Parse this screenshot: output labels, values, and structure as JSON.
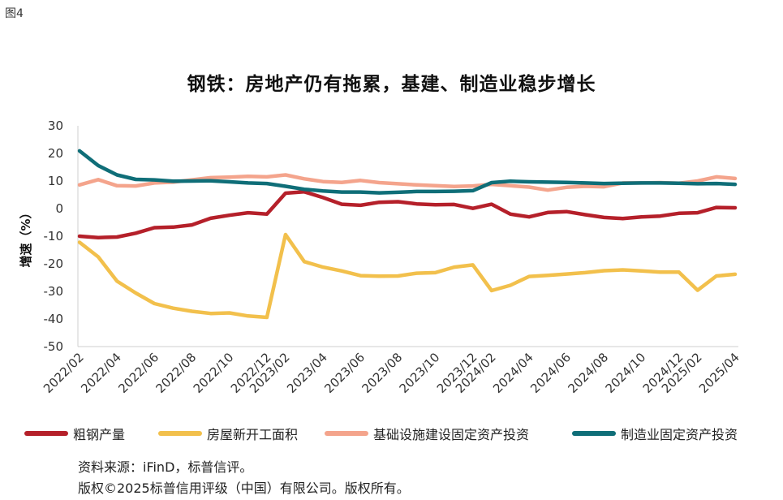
{
  "figure_label": "图4",
  "notes": {
    "source": "资料来源：iFinD，标普信评。",
    "copyright": "版权©2025标普信用评级（中国）有限公司。版权所有。"
  },
  "chart_data": {
    "type": "line",
    "title": "钢铁：房地产仍有拖累，基建、制造业稳步增长",
    "xlabel": "",
    "ylabel": "增速（%）",
    "ylim": [
      -50,
      30
    ],
    "yticks": [
      30,
      20,
      10,
      0,
      -10,
      -20,
      -30,
      -40,
      -50
    ],
    "x": [
      "2022/02",
      "2022/03",
      "2022/04",
      "2022/05",
      "2022/06",
      "2022/07",
      "2022/08",
      "2022/09",
      "2022/10",
      "2022/11",
      "2022/12",
      "2023/02",
      "2023/03",
      "2023/04",
      "2023/05",
      "2023/06",
      "2023/07",
      "2023/08",
      "2023/09",
      "2023/10",
      "2023/11",
      "2023/12",
      "2024/02",
      "2024/03",
      "2024/04",
      "2024/05",
      "2024/06",
      "2024/07",
      "2024/08",
      "2024/09",
      "2024/10",
      "2024/11",
      "2024/12",
      "2025/02",
      "2025/03",
      "2025/04"
    ],
    "xtick_labels": [
      "2022/02",
      "2022/04",
      "2022/06",
      "2022/08",
      "2022/10",
      "2022/12",
      "2023/02",
      "2023/04",
      "2023/06",
      "2023/08",
      "2023/10",
      "2023/12",
      "2024/02",
      "2024/04",
      "2024/06",
      "2024/08",
      "2024/10",
      "2024/12",
      "2025/02",
      "2025/04"
    ],
    "series": [
      {
        "name": "粗钢产量",
        "color": "#b5202a",
        "values": [
          -10.0,
          -10.5,
          -10.3,
          -8.9,
          -6.9,
          -6.7,
          -5.9,
          -3.5,
          -2.4,
          -1.5,
          -2.0,
          5.6,
          6.1,
          4.0,
          1.6,
          1.2,
          2.3,
          2.5,
          1.7,
          1.4,
          1.5,
          0.1,
          1.6,
          -2.0,
          -3.0,
          -1.4,
          -1.1,
          -2.2,
          -3.2,
          -3.6,
          -3.0,
          -2.7,
          -1.7,
          -1.5,
          0.4,
          0.3
        ]
      },
      {
        "name": "房屋新开工面积",
        "color": "#f2c04c",
        "values": [
          -12.2,
          -17.5,
          -26.3,
          -30.6,
          -34.4,
          -36.1,
          -37.2,
          -38.0,
          -37.8,
          -38.9,
          -39.4,
          -9.4,
          -19.2,
          -21.2,
          -22.6,
          -24.3,
          -24.5,
          -24.4,
          -23.4,
          -23.2,
          -21.2,
          -20.4,
          -29.7,
          -27.8,
          -24.6,
          -24.2,
          -23.7,
          -23.2,
          -22.5,
          -22.2,
          -22.6,
          -23.0,
          -23.0,
          -29.6,
          -24.4,
          -23.8
        ]
      },
      {
        "name": "基础设施建设固定资产投资",
        "color": "#f4a48c",
        "values": [
          8.6,
          10.5,
          8.3,
          8.2,
          9.3,
          9.6,
          10.4,
          11.2,
          11.4,
          11.7,
          11.5,
          12.2,
          10.8,
          9.8,
          9.5,
          10.2,
          9.4,
          9.0,
          8.6,
          8.3,
          8.0,
          8.2,
          8.8,
          8.3,
          7.8,
          6.7,
          7.7,
          8.1,
          7.9,
          9.3,
          9.3,
          9.4,
          9.2,
          10.0,
          11.5,
          10.9
        ]
      },
      {
        "name": "制造业固定资产投资",
        "color": "#0f6e78",
        "values": [
          20.9,
          15.6,
          12.2,
          10.6,
          10.4,
          9.9,
          10.0,
          10.1,
          9.7,
          9.3,
          9.1,
          8.1,
          7.0,
          6.4,
          6.0,
          6.0,
          5.7,
          5.9,
          6.2,
          6.2,
          6.3,
          6.5,
          9.4,
          9.9,
          9.7,
          9.6,
          9.5,
          9.3,
          9.1,
          9.2,
          9.3,
          9.3,
          9.2,
          9.0,
          9.1,
          8.8
        ]
      }
    ]
  }
}
